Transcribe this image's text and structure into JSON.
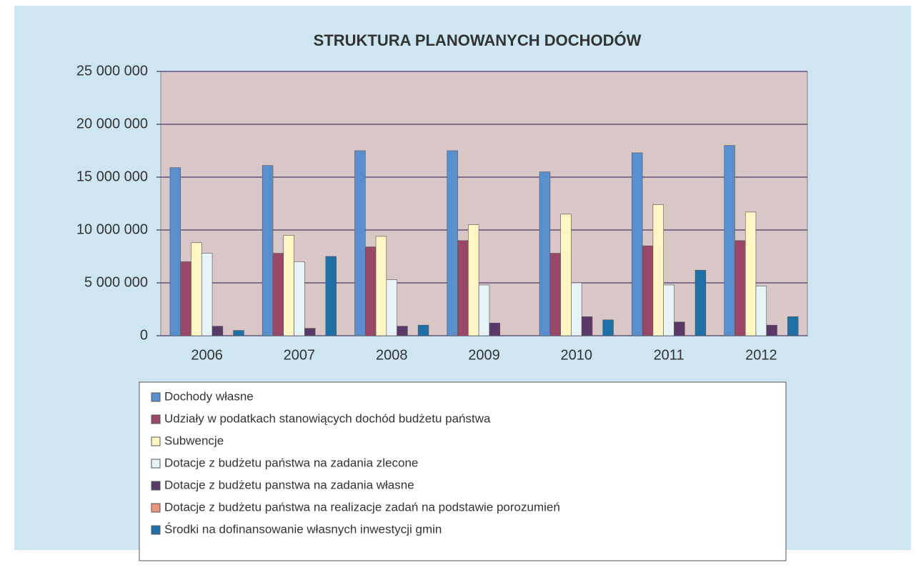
{
  "chart_data": {
    "type": "bar",
    "title": "STRUKTURA PLANOWANYCH DOCHODÓW",
    "categories": [
      "2006",
      "2007",
      "2008",
      "2009",
      "2010",
      "2011",
      "2012"
    ],
    "series": [
      {
        "name": "Dochody własne",
        "color": "#5a8fcf",
        "values": [
          15900000,
          16100000,
          17500000,
          17500000,
          15500000,
          17300000,
          18000000
        ]
      },
      {
        "name": "Udziały w podatkach stanowiących dochód budżetu państwa",
        "color": "#9a4868",
        "values": [
          7000000,
          7800000,
          8400000,
          9000000,
          7800000,
          8500000,
          9000000
        ]
      },
      {
        "name": "Subwencje",
        "color": "#fff6c4",
        "values": [
          8800000,
          9500000,
          9400000,
          10500000,
          11500000,
          12400000,
          11700000
        ]
      },
      {
        "name": "Dotacje z budżetu państwa na zadania zlecone",
        "color": "#e6f4f8",
        "values": [
          7800000,
          7000000,
          5300000,
          4800000,
          5000000,
          4800000,
          4700000
        ]
      },
      {
        "name": "Dotacje z budżetu panstwa na zadania własne",
        "color": "#5a3868",
        "values": [
          900000,
          700000,
          900000,
          1200000,
          1800000,
          1300000,
          1000000
        ]
      },
      {
        "name": "Dotacje z budżetu państwa na realizacje zadań na podstawie porozumień",
        "color": "#e8967c",
        "values": [
          0,
          0,
          0,
          0,
          0,
          0,
          0
        ]
      },
      {
        "name": "Środki na dofinansowanie własnych inwestycji gmin",
        "color": "#1f6fa8",
        "values": [
          500000,
          7500000,
          1000000,
          0,
          1500000,
          6200000,
          1800000
        ]
      }
    ],
    "ylim": [
      0,
      25000000
    ],
    "yticks": [
      0,
      {
        "value": 5000000,
        "label": "5 000 000"
      },
      {
        "value": 10000000,
        "label": "10 000 000"
      },
      {
        "value": 15000000,
        "label": "15 000 000"
      },
      {
        "value": 20000000,
        "label": "20 000 000"
      },
      {
        "value": 25000000,
        "label": "25 000 000"
      }
    ],
    "grid": true
  }
}
